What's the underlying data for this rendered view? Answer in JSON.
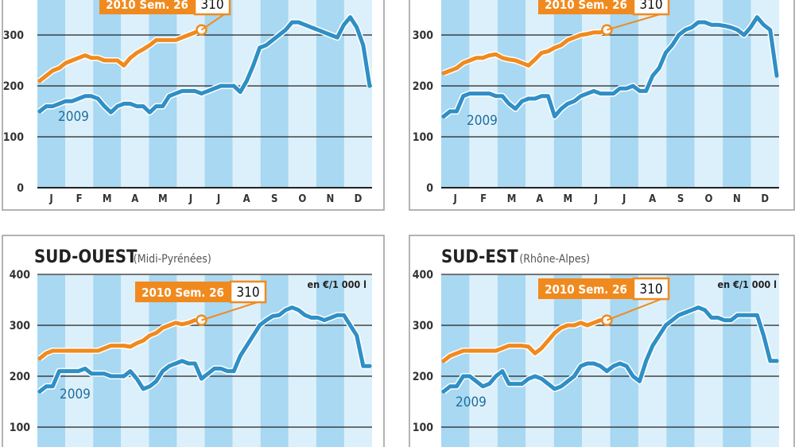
{
  "panels": [
    {
      "title": "",
      "subtitle": "",
      "unit": "",
      "callout": {
        "label": "2010 Sem. 26",
        "value": "310"
      },
      "series_labels": {
        "s2009": "2009"
      },
      "y_ticks": [
        "0",
        "100",
        "200",
        "300"
      ],
      "x_ticks": [
        "J",
        "F",
        "M",
        "A",
        "M",
        "J",
        "J",
        "A",
        "S",
        "O",
        "N",
        "D"
      ]
    },
    {
      "title": "",
      "subtitle": "",
      "unit": "",
      "callout": {
        "label": "2010 Sem. 26",
        "value": "310"
      },
      "series_labels": {
        "s2009": "2009"
      },
      "y_ticks": [
        "0",
        "100",
        "200",
        "300"
      ],
      "x_ticks": [
        "J",
        "F",
        "M",
        "A",
        "M",
        "J",
        "J",
        "A",
        "S",
        "O",
        "N",
        "D"
      ]
    },
    {
      "title": "SUD-OUEST",
      "subtitle": "(Midi-Pyrénées)",
      "unit": "en €/1 000 l",
      "callout": {
        "label": "2010 Sem. 26",
        "value": "310"
      },
      "series_labels": {
        "s2009": "2009"
      },
      "y_ticks": [
        "100",
        "200",
        "300",
        "400"
      ],
      "x_ticks": []
    },
    {
      "title": "SUD-EST",
      "subtitle": "(Rhône-Alpes)",
      "unit": "en €/1 000 l",
      "callout": {
        "label": "2010 Sem. 26",
        "value": "310"
      },
      "series_labels": {
        "s2009": "2009"
      },
      "y_ticks": [
        "100",
        "200",
        "300",
        "400"
      ],
      "x_ticks": []
    }
  ],
  "colors": {
    "s2009": "#2f8fc6",
    "s2010": "#f08a1e",
    "band_light": "#dcf0fb",
    "band_dark": "#a8d8f2",
    "grid": "#222222",
    "axis_text": "#333333"
  },
  "chart_data": [
    {
      "type": "line",
      "ylim": [
        0,
        400
      ],
      "xlim": [
        1,
        52
      ],
      "series": [
        {
          "name": "2009",
          "x": [
            1,
            2,
            3,
            4,
            5,
            6,
            7,
            8,
            9,
            10,
            11,
            12,
            13,
            14,
            15,
            16,
            17,
            18,
            19,
            20,
            21,
            22,
            23,
            24,
            25,
            26,
            27,
            28,
            29,
            30,
            31,
            32,
            33,
            34,
            35,
            36,
            37,
            38,
            39,
            40,
            41,
            42,
            43,
            44,
            45,
            46,
            47,
            48,
            49,
            50,
            51,
            52
          ],
          "values": [
            150,
            160,
            160,
            165,
            170,
            170,
            175,
            180,
            180,
            175,
            160,
            148,
            160,
            165,
            165,
            160,
            160,
            148,
            160,
            160,
            180,
            185,
            190,
            190,
            190,
            185,
            190,
            195,
            200,
            200,
            200,
            188,
            210,
            240,
            275,
            280,
            290,
            300,
            310,
            325,
            325,
            320,
            315,
            310,
            305,
            300,
            295,
            320,
            335,
            315,
            280,
            200
          ]
        },
        {
          "name": "2010",
          "x": [
            1,
            2,
            3,
            4,
            5,
            6,
            7,
            8,
            9,
            10,
            11,
            12,
            13,
            14,
            15,
            16,
            17,
            18,
            19,
            20,
            21,
            22,
            23,
            24,
            25,
            26
          ],
          "values": [
            210,
            220,
            230,
            235,
            245,
            250,
            255,
            260,
            255,
            255,
            250,
            250,
            250,
            240,
            255,
            265,
            272,
            280,
            290,
            290,
            290,
            290,
            295,
            300,
            305,
            310
          ]
        }
      ]
    },
    {
      "type": "line",
      "ylim": [
        0,
        400
      ],
      "xlim": [
        1,
        52
      ],
      "series": [
        {
          "name": "2009",
          "x": [
            1,
            2,
            3,
            4,
            5,
            6,
            7,
            8,
            9,
            10,
            11,
            12,
            13,
            14,
            15,
            16,
            17,
            18,
            19,
            20,
            21,
            22,
            23,
            24,
            25,
            26,
            27,
            28,
            29,
            30,
            31,
            32,
            33,
            34,
            35,
            36,
            37,
            38,
            39,
            40,
            41,
            42,
            43,
            44,
            45,
            46,
            47,
            48,
            49,
            50,
            51,
            52
          ],
          "values": [
            140,
            150,
            150,
            180,
            185,
            185,
            185,
            185,
            180,
            180,
            165,
            155,
            170,
            175,
            175,
            180,
            180,
            140,
            155,
            165,
            170,
            180,
            185,
            190,
            185,
            185,
            185,
            195,
            195,
            200,
            190,
            190,
            220,
            235,
            265,
            280,
            300,
            310,
            315,
            325,
            325,
            320,
            320,
            318,
            315,
            310,
            300,
            315,
            335,
            320,
            310,
            220
          ]
        },
        {
          "name": "2010",
          "x": [
            1,
            2,
            3,
            4,
            5,
            6,
            7,
            8,
            9,
            10,
            11,
            12,
            13,
            14,
            15,
            16,
            17,
            18,
            19,
            20,
            21,
            22,
            23,
            24,
            25,
            26
          ],
          "values": [
            225,
            230,
            235,
            245,
            250,
            255,
            255,
            260,
            262,
            255,
            252,
            250,
            245,
            240,
            252,
            265,
            268,
            275,
            280,
            290,
            295,
            300,
            302,
            305,
            305,
            310
          ]
        }
      ]
    },
    {
      "type": "line",
      "ylim": [
        100,
        400
      ],
      "xlim": [
        1,
        52
      ],
      "series": [
        {
          "name": "2009",
          "x": [
            1,
            2,
            3,
            4,
            5,
            6,
            7,
            8,
            9,
            10,
            11,
            12,
            13,
            14,
            15,
            16,
            17,
            18,
            19,
            20,
            21,
            22,
            23,
            24,
            25,
            26,
            27,
            28,
            29,
            30,
            31,
            32,
            33,
            34,
            35,
            36,
            37,
            38,
            39,
            40,
            41,
            42,
            43,
            44,
            45,
            46,
            47,
            48,
            49,
            50,
            51,
            52
          ],
          "values": [
            170,
            180,
            180,
            210,
            210,
            210,
            210,
            215,
            205,
            205,
            205,
            200,
            200,
            200,
            210,
            195,
            175,
            180,
            190,
            210,
            220,
            225,
            230,
            225,
            225,
            195,
            205,
            215,
            215,
            210,
            210,
            240,
            260,
            280,
            300,
            310,
            318,
            320,
            330,
            335,
            330,
            320,
            315,
            315,
            310,
            315,
            320,
            320,
            300,
            280,
            220,
            220
          ]
        },
        {
          "name": "2010",
          "x": [
            1,
            2,
            3,
            4,
            5,
            6,
            7,
            8,
            9,
            10,
            11,
            12,
            13,
            14,
            15,
            16,
            17,
            18,
            19,
            20,
            21,
            22,
            23,
            24,
            25,
            26
          ],
          "values": [
            235,
            245,
            250,
            250,
            250,
            250,
            250,
            250,
            250,
            250,
            255,
            260,
            260,
            260,
            258,
            265,
            270,
            280,
            285,
            295,
            300,
            305,
            302,
            305,
            310,
            310
          ]
        }
      ]
    },
    {
      "type": "line",
      "ylim": [
        100,
        400
      ],
      "xlim": [
        1,
        52
      ],
      "series": [
        {
          "name": "2009",
          "x": [
            1,
            2,
            3,
            4,
            5,
            6,
            7,
            8,
            9,
            10,
            11,
            12,
            13,
            14,
            15,
            16,
            17,
            18,
            19,
            20,
            21,
            22,
            23,
            24,
            25,
            26,
            27,
            28,
            29,
            30,
            31,
            32,
            33,
            34,
            35,
            36,
            37,
            38,
            39,
            40,
            41,
            42,
            43,
            44,
            45,
            46,
            47,
            48,
            49,
            50,
            51,
            52
          ],
          "values": [
            170,
            180,
            180,
            200,
            200,
            190,
            180,
            185,
            200,
            210,
            185,
            185,
            185,
            195,
            200,
            195,
            185,
            175,
            180,
            190,
            200,
            220,
            225,
            225,
            220,
            210,
            220,
            225,
            220,
            200,
            190,
            230,
            260,
            280,
            300,
            310,
            320,
            325,
            330,
            335,
            330,
            315,
            315,
            310,
            310,
            320,
            320,
            320,
            320,
            280,
            230,
            230
          ]
        },
        {
          "name": "2010",
          "x": [
            1,
            2,
            3,
            4,
            5,
            6,
            7,
            8,
            9,
            10,
            11,
            12,
            13,
            14,
            15,
            16,
            17,
            18,
            19,
            20,
            21,
            22,
            23,
            24,
            25,
            26
          ],
          "values": [
            230,
            240,
            245,
            250,
            250,
            250,
            250,
            250,
            250,
            255,
            260,
            260,
            260,
            258,
            245,
            255,
            270,
            285,
            295,
            300,
            300,
            305,
            300,
            305,
            310,
            310
          ]
        }
      ]
    }
  ]
}
